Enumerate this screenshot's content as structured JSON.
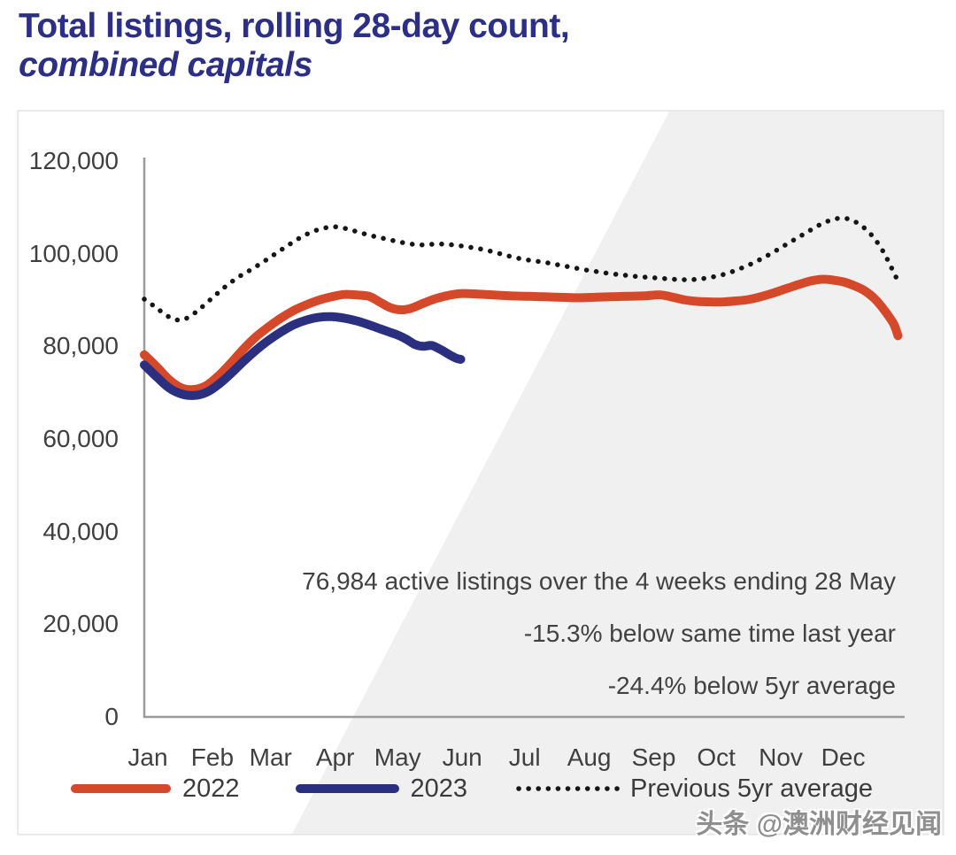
{
  "title": {
    "line1": "Total listings, rolling 28-day count,",
    "line2": "combined capitals"
  },
  "annotation": {
    "line1": "76,984 active listings over the 4 weeks ending 28 May",
    "line2": "-15.3% below same time last year",
    "line3": "-24.4% below 5yr average"
  },
  "watermark": "头条 @澳洲财经见闻",
  "colors": {
    "title_navy": "#2b2f85",
    "series_2022": "#d5492a",
    "series_2023": "#2a2f80",
    "series_avg": "#161616",
    "axis_line": "#9b9b9b",
    "panel_bg": "#f0f0f1",
    "panel_border": "#dcdcde"
  },
  "legend": {
    "items": [
      {
        "label": "2022",
        "style": "solid-red"
      },
      {
        "label": "2023",
        "style": "solid-navy"
      },
      {
        "label": "Previous 5yr average",
        "style": "dotted-black"
      }
    ]
  },
  "chart_data": {
    "type": "line",
    "title": "Total listings, rolling 28-day count, combined capitals",
    "x_unit": "day_of_year",
    "x_axis": {
      "labels": [
        "Jan",
        "Feb",
        "Mar",
        "Apr",
        "May",
        "Jun",
        "Jul",
        "Aug",
        "Sep",
        "Oct",
        "Nov",
        "Dec"
      ],
      "month_start_days": [
        0,
        31,
        59,
        90,
        120,
        151,
        181,
        212,
        243,
        273,
        304,
        334
      ]
    },
    "y_axis": {
      "tick_values": [
        120000,
        100000,
        80000,
        60000,
        40000,
        20000,
        0
      ],
      "tick_labels": [
        "120,000",
        "100,000",
        "80,000",
        "60,000",
        "40,000",
        "20,000",
        "0"
      ],
      "ylim": [
        0,
        120000
      ],
      "label": "Total listings"
    },
    "grid": false,
    "legend_position": "bottom",
    "series": [
      {
        "name": "Previous 5yr average",
        "style": "dotted",
        "points": [
          [
            0,
            90200
          ],
          [
            5,
            88600
          ],
          [
            10,
            86900
          ],
          [
            14,
            85900
          ],
          [
            18,
            85700
          ],
          [
            22,
            86500
          ],
          [
            27,
            88200
          ],
          [
            33,
            90600
          ],
          [
            39,
            92900
          ],
          [
            45,
            94900
          ],
          [
            51,
            96500
          ],
          [
            57,
            98200
          ],
          [
            63,
            100000
          ],
          [
            69,
            101800
          ],
          [
            75,
            103500
          ],
          [
            81,
            104800
          ],
          [
            87,
            105600
          ],
          [
            92,
            105800
          ],
          [
            98,
            105300
          ],
          [
            104,
            104500
          ],
          [
            110,
            103800
          ],
          [
            116,
            103200
          ],
          [
            122,
            102600
          ],
          [
            128,
            102100
          ],
          [
            134,
            101900
          ],
          [
            140,
            102100
          ],
          [
            146,
            102000
          ],
          [
            152,
            101700
          ],
          [
            158,
            101300
          ],
          [
            164,
            100800
          ],
          [
            170,
            100100
          ],
          [
            176,
            99400
          ],
          [
            182,
            98800
          ],
          [
            188,
            98400
          ],
          [
            194,
            98000
          ],
          [
            200,
            97500
          ],
          [
            206,
            97000
          ],
          [
            212,
            96500
          ],
          [
            218,
            96100
          ],
          [
            224,
            95700
          ],
          [
            230,
            95400
          ],
          [
            236,
            95100
          ],
          [
            242,
            94900
          ],
          [
            248,
            94700
          ],
          [
            254,
            94500
          ],
          [
            260,
            94400
          ],
          [
            266,
            94500
          ],
          [
            272,
            94900
          ],
          [
            278,
            95500
          ],
          [
            284,
            96400
          ],
          [
            290,
            97500
          ],
          [
            296,
            98800
          ],
          [
            302,
            100300
          ],
          [
            308,
            101900
          ],
          [
            314,
            103500
          ],
          [
            320,
            105100
          ],
          [
            326,
            106600
          ],
          [
            331,
            107400
          ],
          [
            335,
            107700
          ],
          [
            339,
            107400
          ],
          [
            343,
            106500
          ],
          [
            347,
            105100
          ],
          [
            351,
            103100
          ],
          [
            355,
            100400
          ],
          [
            358,
            97800
          ],
          [
            361,
            95000
          ],
          [
            363,
            93400
          ]
        ]
      },
      {
        "name": "2022",
        "style": "solid",
        "points": [
          [
            0,
            78200
          ],
          [
            6,
            75600
          ],
          [
            12,
            72800
          ],
          [
            18,
            71000
          ],
          [
            24,
            70700
          ],
          [
            30,
            71600
          ],
          [
            36,
            73800
          ],
          [
            42,
            76600
          ],
          [
            48,
            79600
          ],
          [
            54,
            82200
          ],
          [
            60,
            84300
          ],
          [
            66,
            86200
          ],
          [
            72,
            87800
          ],
          [
            78,
            89000
          ],
          [
            84,
            90000
          ],
          [
            90,
            90700
          ],
          [
            96,
            91200
          ],
          [
            102,
            91100
          ],
          [
            108,
            90800
          ],
          [
            113,
            89600
          ],
          [
            118,
            88400
          ],
          [
            123,
            87900
          ],
          [
            128,
            88200
          ],
          [
            134,
            89300
          ],
          [
            140,
            90300
          ],
          [
            146,
            91000
          ],
          [
            152,
            91400
          ],
          [
            160,
            91300
          ],
          [
            168,
            91100
          ],
          [
            176,
            90900
          ],
          [
            184,
            90800
          ],
          [
            192,
            90700
          ],
          [
            200,
            90600
          ],
          [
            208,
            90500
          ],
          [
            216,
            90600
          ],
          [
            224,
            90700
          ],
          [
            232,
            90800
          ],
          [
            240,
            90900
          ],
          [
            248,
            91100
          ],
          [
            254,
            90600
          ],
          [
            260,
            90000
          ],
          [
            266,
            89700
          ],
          [
            272,
            89600
          ],
          [
            278,
            89600
          ],
          [
            284,
            89800
          ],
          [
            290,
            90100
          ],
          [
            296,
            90700
          ],
          [
            302,
            91500
          ],
          [
            308,
            92400
          ],
          [
            314,
            93300
          ],
          [
            320,
            94100
          ],
          [
            326,
            94500
          ],
          [
            331,
            94300
          ],
          [
            336,
            93900
          ],
          [
            341,
            93100
          ],
          [
            346,
            92000
          ],
          [
            351,
            90200
          ],
          [
            356,
            87500
          ],
          [
            360,
            84800
          ],
          [
            362,
            82300
          ]
        ]
      },
      {
        "name": "2023",
        "style": "solid",
        "points": [
          [
            0,
            76000
          ],
          [
            6,
            73400
          ],
          [
            12,
            71000
          ],
          [
            18,
            69700
          ],
          [
            24,
            69400
          ],
          [
            30,
            70100
          ],
          [
            36,
            71900
          ],
          [
            42,
            74300
          ],
          [
            48,
            76900
          ],
          [
            54,
            79300
          ],
          [
            60,
            81400
          ],
          [
            66,
            83200
          ],
          [
            72,
            84700
          ],
          [
            78,
            85700
          ],
          [
            84,
            86300
          ],
          [
            90,
            86400
          ],
          [
            96,
            86100
          ],
          [
            102,
            85500
          ],
          [
            107,
            84800
          ],
          [
            112,
            84000
          ],
          [
            117,
            83200
          ],
          [
            122,
            82400
          ],
          [
            126,
            81500
          ],
          [
            130,
            80400
          ],
          [
            134,
            80000
          ],
          [
            138,
            80200
          ],
          [
            142,
            79400
          ],
          [
            144,
            78900
          ],
          [
            147,
            78100
          ],
          [
            150,
            77400
          ],
          [
            152,
            77200
          ]
        ]
      }
    ],
    "annotations": [
      "76,984 active listings over the 4 weeks ending 28 May",
      "-15.3% below same time last year",
      "-24.4% below 5yr average"
    ]
  }
}
